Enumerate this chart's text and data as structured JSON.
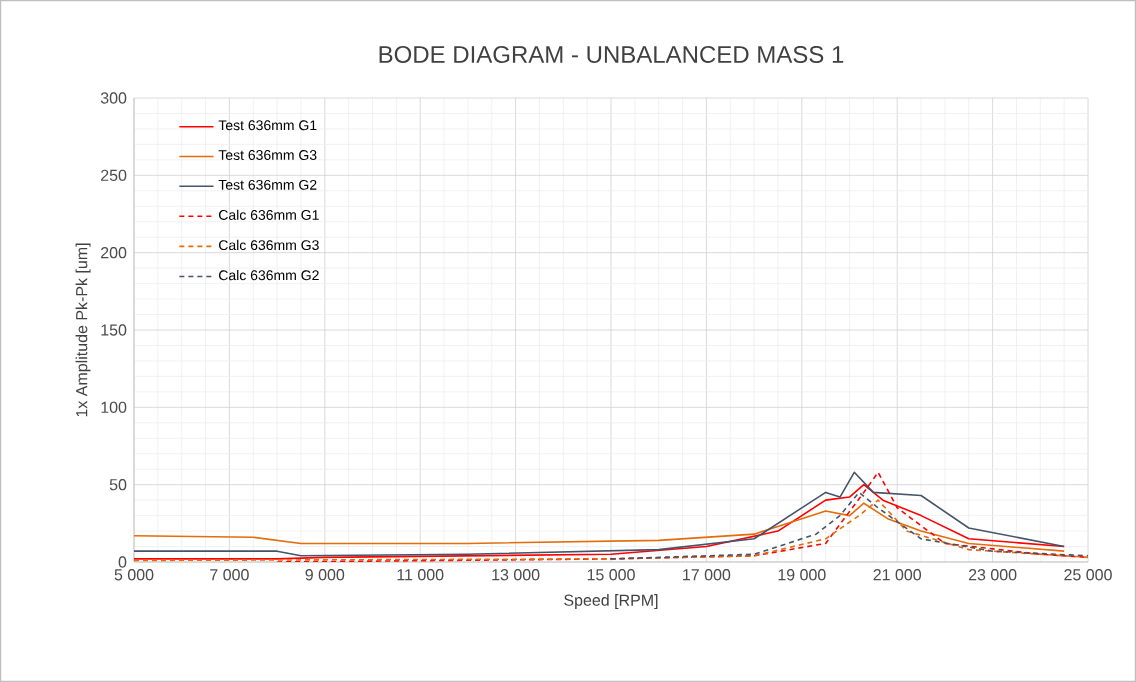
{
  "chart_data": {
    "type": "line",
    "title": "BODE DIAGRAM - UNBALANCED MASS 1",
    "xlabel": "Speed [RPM]",
    "ylabel": "1x Amplitude Pk-Pk [um]",
    "xlim": [
      5000,
      25000
    ],
    "ylim": [
      0,
      300
    ],
    "xticks": [
      {
        "value": 5000,
        "label": "5 000"
      },
      {
        "value": 7000,
        "label": "7 000"
      },
      {
        "value": 9000,
        "label": "9 000"
      },
      {
        "value": 11000,
        "label": "11 000"
      },
      {
        "value": 13000,
        "label": "13 000"
      },
      {
        "value": 15000,
        "label": "15 000"
      },
      {
        "value": 17000,
        "label": "17 000"
      },
      {
        "value": 19000,
        "label": "19 000"
      },
      {
        "value": 21000,
        "label": "21 000"
      },
      {
        "value": 23000,
        "label": "23 000"
      },
      {
        "value": 25000,
        "label": "25 000"
      }
    ],
    "yticks": [
      0,
      50,
      100,
      150,
      200,
      250,
      300
    ],
    "grid": true,
    "legend": "top left",
    "marker": "none",
    "series": [
      {
        "name": "Test 636mm G1",
        "color": "#ff0000",
        "line_style": "solid",
        "x": [
          5000,
          8000,
          9000,
          15000,
          17000,
          18500,
          19000,
          19500,
          20000,
          20300,
          20700,
          21500,
          22500,
          24500
        ],
        "values": [
          2,
          2,
          3,
          5,
          10,
          20,
          30,
          40,
          42,
          50,
          40,
          30,
          15,
          10
        ]
      },
      {
        "name": "Test 636mm G3",
        "color": "#e46c0a",
        "line_style": "solid",
        "x": [
          5000,
          7500,
          8500,
          12000,
          16000,
          18000,
          19000,
          19500,
          20000,
          20300,
          20800,
          21500,
          22500,
          24500
        ],
        "values": [
          17,
          16,
          12,
          12,
          14,
          18,
          28,
          33,
          30,
          38,
          28,
          20,
          12,
          7
        ]
      },
      {
        "name": "Test 636mm G2",
        "color": "#44546a",
        "line_style": "solid",
        "x": [
          5000,
          8000,
          8500,
          12000,
          16000,
          18000,
          19000,
          19500,
          19800,
          20100,
          20500,
          21500,
          22500,
          24500
        ],
        "values": [
          7,
          7,
          4,
          5,
          8,
          15,
          35,
          45,
          42,
          58,
          45,
          43,
          22,
          10
        ]
      },
      {
        "name": "Calc 636mm G1",
        "color": "#ff0000",
        "line_style": "dashed",
        "x": [
          8000,
          15000,
          18000,
          19500,
          20300,
          20600,
          21000,
          22000,
          24000,
          25000
        ],
        "values": [
          0,
          2,
          4,
          12,
          45,
          58,
          35,
          12,
          5,
          3
        ]
      },
      {
        "name": "Calc 636mm G3",
        "color": "#e46c0a",
        "line_style": "dashed",
        "x": [
          5000,
          15000,
          18000,
          19500,
          20200,
          20600,
          21200,
          22500,
          25000
        ],
        "values": [
          1,
          2,
          4,
          15,
          30,
          40,
          20,
          8,
          3
        ]
      },
      {
        "name": "Calc 636mm G2",
        "color": "#44546a",
        "line_style": "dashed",
        "x": [
          15000,
          18000,
          19300,
          19800,
          20200,
          20600,
          21500,
          23000,
          25000
        ],
        "values": [
          2,
          5,
          18,
          30,
          45,
          35,
          15,
          7,
          4
        ]
      }
    ]
  }
}
